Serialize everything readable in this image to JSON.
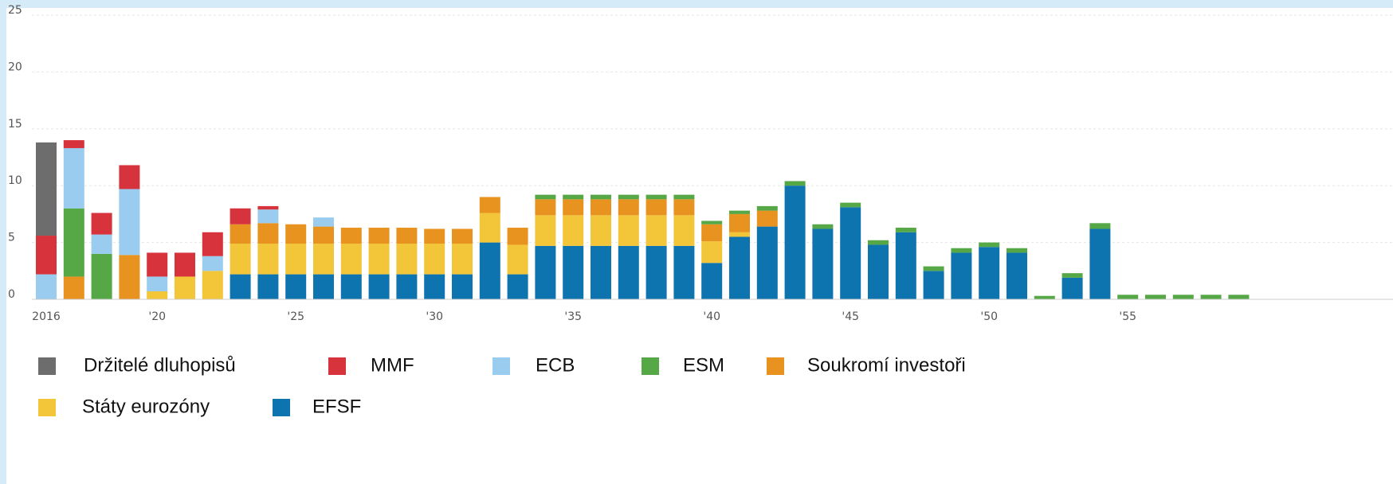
{
  "chart_data": {
    "type": "stacked_bar",
    "categories": [
      "2016",
      null,
      null,
      null,
      "'20",
      null,
      null,
      null,
      null,
      "'25",
      null,
      null,
      null,
      null,
      "'30",
      null,
      null,
      null,
      null,
      "'35",
      null,
      null,
      null,
      null,
      "'40",
      null,
      null,
      null,
      null,
      "'45",
      null,
      null,
      null,
      null,
      "'50",
      null,
      null,
      null,
      null,
      "'55",
      null,
      null,
      null,
      null
    ],
    "series": [
      {
        "name": "Držitelé dluhopisů",
        "color": "#6d6d6d",
        "values": [
          8.2,
          0,
          0,
          0,
          0,
          0,
          0,
          0,
          0,
          0,
          0,
          0,
          0,
          0,
          0,
          0,
          0,
          0,
          0,
          0,
          0,
          0,
          0,
          0,
          0,
          0,
          0,
          0,
          0,
          0,
          0,
          0,
          0,
          0,
          0,
          0,
          0,
          0,
          0,
          0,
          0,
          0,
          0,
          0
        ]
      },
      {
        "name": "MMF",
        "color": "#d7333c",
        "values": [
          3.4,
          0.7,
          1.9,
          2.1,
          2.1,
          2.1,
          2.1,
          1.4,
          0.3,
          0,
          0,
          0,
          0,
          0,
          0,
          0,
          0,
          0,
          0,
          0,
          0,
          0,
          0,
          0,
          0,
          0,
          0,
          0,
          0,
          0,
          0,
          0,
          0,
          0,
          0,
          0,
          0,
          0,
          0,
          0,
          0,
          0,
          0,
          0
        ]
      },
      {
        "name": "ECB",
        "color": "#99ccee",
        "values": [
          2.2,
          5.3,
          1.7,
          5.8,
          1.3,
          0,
          1.3,
          0,
          1.2,
          0,
          0.8,
          0,
          0,
          0,
          0,
          0,
          0,
          0,
          0,
          0,
          0,
          0,
          0,
          0,
          0,
          0,
          0,
          0,
          0,
          0,
          0,
          0,
          0,
          0,
          0,
          0,
          0,
          0,
          0,
          0,
          0,
          0,
          0,
          0
        ]
      },
      {
        "name": "ESM",
        "color": "#55a845",
        "values": [
          0,
          6.0,
          4.0,
          0,
          0,
          0,
          0,
          0,
          0,
          0,
          0,
          0,
          0,
          0,
          0,
          0,
          0,
          0,
          0.4,
          0.4,
          0.4,
          0.4,
          0.4,
          0.4,
          0.3,
          0.3,
          0.4,
          0.4,
          0.4,
          0.4,
          0.4,
          0.4,
          0.4,
          0.4,
          0.4,
          0.4,
          0.3,
          0.4,
          0.5,
          0.4,
          0.4,
          0.4,
          0.4,
          0.4
        ]
      },
      {
        "name": "Soukromí investoři",
        "color": "#e8921f",
        "values": [
          0,
          2.0,
          0,
          3.9,
          0,
          0,
          0,
          1.7,
          1.8,
          1.7,
          1.5,
          1.4,
          1.4,
          1.4,
          1.3,
          1.3,
          1.4,
          1.5,
          1.4,
          1.4,
          1.4,
          1.4,
          1.4,
          1.4,
          1.5,
          1.6,
          1.4,
          0,
          0,
          0,
          0,
          0,
          0,
          0,
          0,
          0,
          0,
          0,
          0,
          0,
          0,
          0,
          0,
          0
        ]
      },
      {
        "name": "Státy eurozóny",
        "color": "#f3c538",
        "values": [
          0,
          0,
          0,
          0,
          0.7,
          2.0,
          2.5,
          2.7,
          2.7,
          2.7,
          2.7,
          2.7,
          2.7,
          2.7,
          2.7,
          2.7,
          2.6,
          2.6,
          2.7,
          2.7,
          2.7,
          2.7,
          2.7,
          2.7,
          1.9,
          0.4,
          0,
          0,
          0,
          0,
          0,
          0,
          0,
          0,
          0,
          0,
          0,
          0,
          0,
          0,
          0,
          0,
          0,
          0
        ]
      },
      {
        "name": "EFSF",
        "color": "#0d74b0",
        "values": [
          0,
          0,
          0,
          0,
          0,
          0,
          0,
          2.2,
          2.2,
          2.2,
          2.2,
          2.2,
          2.2,
          2.2,
          2.2,
          2.2,
          5.0,
          2.2,
          4.7,
          4.7,
          4.7,
          4.7,
          4.7,
          4.7,
          3.2,
          5.5,
          6.4,
          10,
          6.2,
          8.1,
          4.8,
          5.9,
          2.5,
          4.1,
          4.6,
          4.1,
          0,
          1.9,
          6.2,
          0,
          0,
          0,
          0,
          0
        ]
      }
    ],
    "ylim": [
      0,
      25
    ],
    "yticks": [
      0,
      5,
      10,
      15,
      20,
      25
    ],
    "grid": true
  }
}
